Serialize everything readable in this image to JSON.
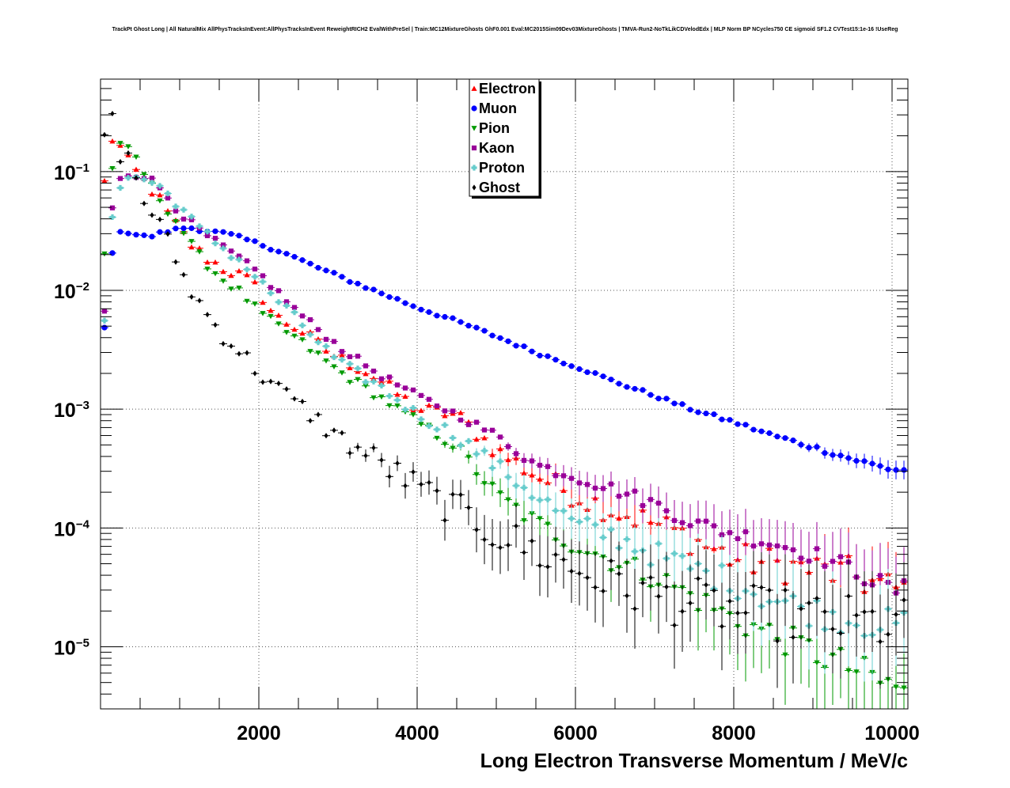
{
  "chart_data": {
    "type": "scatter",
    "title": "TrackPt Ghost Long | All NaturalMix AllPhysTracksInEvent:AllPhysTracksInEvent ReweightRICH2 EvalWithPreSel | Train:MC12MixtureGhosts GhF0.001 Eval:MC2015Sim09Dev03MixtureGhosts | TMVA-Run2-NoTkLikCDVelodEdx | MLP Norm BP NCycles750 CE sigmoid SF1.2 CVTest15:1e-16 !UseReg",
    "xlabel": "Long Electron Transverse Momentum / MeV/c",
    "ylabel": "",
    "xlim": [
      0,
      10200
    ],
    "ylim": [
      3e-06,
      0.6
    ],
    "yscale": "log",
    "grid": true,
    "legend_position": "top-center",
    "x_ticks": [
      {
        "value": 2000,
        "label": "2000"
      },
      {
        "value": 4000,
        "label": "4000"
      },
      {
        "value": 6000,
        "label": "6000"
      },
      {
        "value": 8000,
        "label": "8000"
      },
      {
        "value": 10000,
        "label": "10000"
      }
    ],
    "y_ticks": [
      {
        "value": 0.1,
        "base": "10",
        "exp": "−1"
      },
      {
        "value": 0.01,
        "base": "10",
        "exp": "−2"
      },
      {
        "value": 0.001,
        "base": "10",
        "exp": "−3"
      },
      {
        "value": 0.0001,
        "base": "10",
        "exp": "−4"
      },
      {
        "value": 1e-05,
        "base": "10",
        "exp": "−5"
      }
    ],
    "series": [
      {
        "name": "Electron",
        "color": "#ff0000",
        "marker": "triangle-up",
        "anchors": [
          [
            50,
            0.08
          ],
          [
            150,
            0.19
          ],
          [
            250,
            0.16
          ],
          [
            350,
            0.12
          ],
          [
            500,
            0.09
          ],
          [
            700,
            0.065
          ],
          [
            850,
            0.044
          ],
          [
            1000,
            0.032
          ],
          [
            1200,
            0.022
          ],
          [
            1500,
            0.016
          ],
          [
            1800,
            0.013
          ],
          [
            2000,
            0.01
          ],
          [
            2200,
            0.006
          ],
          [
            2500,
            0.0048
          ],
          [
            2800,
            0.0033
          ],
          [
            3000,
            0.0027
          ],
          [
            3300,
            0.0022
          ],
          [
            3600,
            0.0016
          ],
          [
            4000,
            0.001
          ],
          [
            4500,
            0.0009
          ],
          [
            5000,
            0.00045
          ],
          [
            5500,
            0.00028
          ],
          [
            6000,
            0.00019
          ],
          [
            6500,
            0.00014
          ],
          [
            7000,
            0.00011
          ],
          [
            7500,
            8e-05
          ],
          [
            8000,
            5.5e-05
          ],
          [
            8500,
            5e-05
          ],
          [
            9000,
            4.5e-05
          ],
          [
            9500,
            4e-05
          ],
          [
            10000,
            3e-05
          ]
        ],
        "noise": 0.12
      },
      {
        "name": "Muon",
        "color": "#0000ff",
        "marker": "circle",
        "anchors": [
          [
            50,
            0.005
          ],
          [
            150,
            0.02
          ],
          [
            250,
            0.032
          ],
          [
            400,
            0.03
          ],
          [
            600,
            0.028
          ],
          [
            800,
            0.031
          ],
          [
            1000,
            0.033
          ],
          [
            1100,
            0.034
          ],
          [
            1300,
            0.032
          ],
          [
            1600,
            0.03
          ],
          [
            1900,
            0.026
          ],
          [
            2300,
            0.021
          ],
          [
            2800,
            0.015
          ],
          [
            3300,
            0.011
          ],
          [
            4000,
            0.0072
          ],
          [
            4500,
            0.0055
          ],
          [
            5000,
            0.0041
          ],
          [
            5500,
            0.003
          ],
          [
            6000,
            0.0023
          ],
          [
            6500,
            0.0017
          ],
          [
            7000,
            0.0013
          ],
          [
            7500,
            0.00098
          ],
          [
            8000,
            0.00078
          ],
          [
            8500,
            0.0006
          ],
          [
            9000,
            0.00048
          ],
          [
            9500,
            0.00038
          ],
          [
            10000,
            0.00031
          ]
        ],
        "noise": 0.03
      },
      {
        "name": "Pion",
        "color": "#009900",
        "marker": "triangle-down",
        "anchors": [
          [
            50,
            0.02
          ],
          [
            150,
            0.11
          ],
          [
            250,
            0.16
          ],
          [
            350,
            0.15
          ],
          [
            450,
            0.13
          ],
          [
            600,
            0.083
          ],
          [
            800,
            0.053
          ],
          [
            1000,
            0.035
          ],
          [
            1200,
            0.021
          ],
          [
            1500,
            0.013
          ],
          [
            1800,
            0.0092
          ],
          [
            2000,
            0.0065
          ],
          [
            2500,
            0.0038
          ],
          [
            3000,
            0.0021
          ],
          [
            3500,
            0.0013
          ],
          [
            4000,
            0.00078
          ],
          [
            4500,
            0.00048
          ],
          [
            5000,
            0.00019
          ],
          [
            5500,
            0.00011
          ],
          [
            6000,
            7.2e-05
          ],
          [
            6500,
            5.2e-05
          ],
          [
            7000,
            3.9e-05
          ],
          [
            7500,
            2.6e-05
          ],
          [
            8000,
            1.7e-05
          ],
          [
            8500,
            1.25e-05
          ],
          [
            9000,
            9e-06
          ],
          [
            9500,
            6.5e-06
          ],
          [
            10000,
            4.5e-06
          ]
        ],
        "noise": 0.08
      },
      {
        "name": "Kaon",
        "color": "#990099",
        "marker": "square",
        "anchors": [
          [
            50,
            0.0065
          ],
          [
            150,
            0.048
          ],
          [
            250,
            0.09
          ],
          [
            350,
            0.095
          ],
          [
            450,
            0.095
          ],
          [
            600,
            0.09
          ],
          [
            800,
            0.068
          ],
          [
            1000,
            0.045
          ],
          [
            1300,
            0.03
          ],
          [
            1600,
            0.022
          ],
          [
            2000,
            0.014
          ],
          [
            2500,
            0.0065
          ],
          [
            3000,
            0.0034
          ],
          [
            3500,
            0.002
          ],
          [
            4000,
            0.0013
          ],
          [
            4500,
            0.0009
          ],
          [
            5000,
            0.0006
          ],
          [
            5500,
            0.00034
          ],
          [
            6000,
            0.00027
          ],
          [
            6500,
            0.00021
          ],
          [
            7000,
            0.00016
          ],
          [
            7500,
            0.00011
          ],
          [
            8000,
            9e-05
          ],
          [
            8500,
            7.5e-05
          ],
          [
            9000,
            6e-05
          ],
          [
            9500,
            4.5e-05
          ],
          [
            10000,
            3e-05
          ]
        ],
        "noise": 0.06
      },
      {
        "name": "Proton",
        "color": "#66cccc",
        "marker": "cross",
        "anchors": [
          [
            50,
            0.0058
          ],
          [
            150,
            0.045
          ],
          [
            250,
            0.075
          ],
          [
            400,
            0.092
          ],
          [
            600,
            0.085
          ],
          [
            800,
            0.07
          ],
          [
            1000,
            0.052
          ],
          [
            1200,
            0.035
          ],
          [
            1500,
            0.024
          ],
          [
            1800,
            0.017
          ],
          [
            2000,
            0.012
          ],
          [
            2500,
            0.0055
          ],
          [
            3000,
            0.0025
          ],
          [
            3500,
            0.0016
          ],
          [
            4000,
            0.0009
          ],
          [
            4500,
            0.0006
          ],
          [
            5000,
            0.00033
          ],
          [
            5500,
            0.00019
          ],
          [
            6000,
            0.000105
          ],
          [
            6500,
            8.5e-05
          ],
          [
            7000,
            6e-05
          ],
          [
            7500,
            4.5e-05
          ],
          [
            8000,
            3.5e-05
          ],
          [
            8500,
            2.5e-05
          ],
          [
            9000,
            2e-05
          ],
          [
            9500,
            1.7e-05
          ],
          [
            10000,
            1.5e-05
          ]
        ],
        "noise": 0.09
      },
      {
        "name": "Ghost",
        "color": "#000000",
        "marker": "diamond",
        "anchors": [
          [
            50,
            0.21
          ],
          [
            150,
            0.27
          ],
          [
            250,
            0.14
          ],
          [
            350,
            0.13
          ],
          [
            450,
            0.09
          ],
          [
            550,
            0.055
          ],
          [
            700,
            0.042
          ],
          [
            900,
            0.022
          ],
          [
            1100,
            0.011
          ],
          [
            1300,
            0.007
          ],
          [
            1500,
            0.0045
          ],
          [
            1800,
            0.0029
          ],
          [
            2000,
            0.002
          ],
          [
            2500,
            0.0011
          ],
          [
            3000,
            0.00058
          ],
          [
            3500,
            0.00037
          ],
          [
            4000,
            0.00022
          ],
          [
            4500,
            0.00014
          ],
          [
            5000,
            9e-05
          ],
          [
            5500,
            6.3e-05
          ],
          [
            6000,
            4.5e-05
          ],
          [
            6500,
            3.4e-05
          ],
          [
            7000,
            2.7e-05
          ],
          [
            7500,
            2.3e-05
          ],
          [
            8000,
            2e-05
          ],
          [
            8500,
            1.9e-05
          ],
          [
            9000,
            1.7e-05
          ],
          [
            9500,
            1.6e-05
          ],
          [
            10000,
            1.5e-05
          ]
        ],
        "noise": 0.15
      }
    ]
  }
}
